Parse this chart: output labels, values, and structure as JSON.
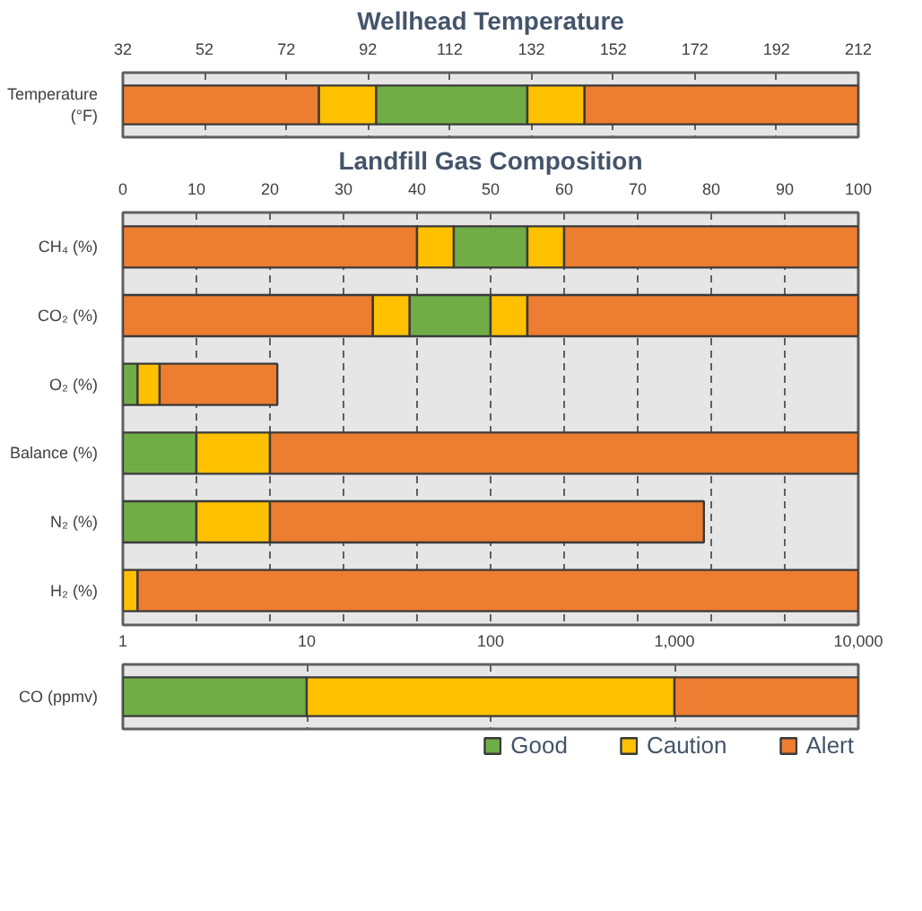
{
  "chart_data": [
    {
      "type": "bar",
      "orientation": "horizontal",
      "title": "Wellhead Temperature",
      "categories": [
        "Temperature (°F)"
      ],
      "xlim": [
        32,
        212
      ],
      "xticks": [
        32,
        52,
        72,
        92,
        112,
        132,
        152,
        172,
        192,
        212
      ],
      "grid": "x",
      "series": [
        {
          "color": "#ed7d31",
          "base": [
            32
          ],
          "values": [
            48
          ]
        },
        {
          "color": "#ffc000",
          "base": [
            80
          ],
          "values": [
            14
          ]
        },
        {
          "color": "#70ad47",
          "base": [
            94
          ],
          "values": [
            37
          ]
        },
        {
          "color": "#ffc000",
          "base": [
            131
          ],
          "values": [
            14
          ]
        },
        {
          "color": "#ed7d31",
          "base": [
            145
          ],
          "values": [
            67
          ]
        }
      ]
    },
    {
      "type": "bar",
      "orientation": "horizontal",
      "stacked": true,
      "title": "Landfill Gas Composition",
      "categories": [
        "CH₄ (%)",
        "CO₂ (%)",
        "O₂ (%)",
        "Balance (%)",
        "N₂ (%)",
        "H₂ (%)"
      ],
      "xlim": [
        0,
        100
      ],
      "xticks": [
        0,
        10,
        20,
        30,
        40,
        50,
        60,
        70,
        80,
        90,
        100
      ],
      "grid": "x",
      "series": [
        {
          "colors": [
            "#ed7d31",
            "#ed7d31",
            "#70ad47",
            "#70ad47",
            "#70ad47",
            "#ffc000"
          ],
          "values": [
            40,
            34,
            2,
            10,
            10,
            2
          ]
        },
        {
          "colors": [
            "#ffc000",
            "#ffc000",
            "#ffc000",
            "#ffc000",
            "#ffc000",
            "#ed7d31"
          ],
          "values": [
            5,
            5,
            3,
            10,
            10,
            98
          ]
        },
        {
          "colors": [
            "#70ad47",
            "#70ad47",
            "#ed7d31",
            "#ed7d31",
            "#ed7d31",
            null
          ],
          "values": [
            10,
            11,
            16,
            80,
            59,
            null
          ]
        },
        {
          "colors": [
            "#ffc000",
            "#ffc000",
            null,
            null,
            null,
            null
          ],
          "values": [
            5,
            5,
            null,
            null,
            null,
            null
          ]
        },
        {
          "colors": [
            "#ed7d31",
            "#ed7d31",
            null,
            null,
            null,
            null
          ],
          "values": [
            40,
            45,
            null,
            null,
            null,
            null
          ]
        }
      ]
    },
    {
      "type": "bar",
      "orientation": "horizontal",
      "log": "x",
      "categories": [
        "CO (ppmv)"
      ],
      "xlim": [
        1,
        10000
      ],
      "xticks": [
        1,
        10,
        100,
        {
          "value": 1000,
          "label": "1,000"
        },
        {
          "value": 10000,
          "label": "10,000"
        }
      ],
      "grid": "x",
      "legend": "bottom",
      "series": [
        {
          "name": "Good",
          "color": "#70ad47",
          "base": [
            1
          ],
          "values": [
            9
          ]
        },
        {
          "name": "Caution",
          "color": "#ffc000",
          "base": [
            10
          ],
          "values": [
            990
          ]
        },
        {
          "name": "Alert",
          "color": "#ed7d31",
          "base": [
            1000
          ],
          "values": [
            9000
          ]
        }
      ]
    }
  ]
}
